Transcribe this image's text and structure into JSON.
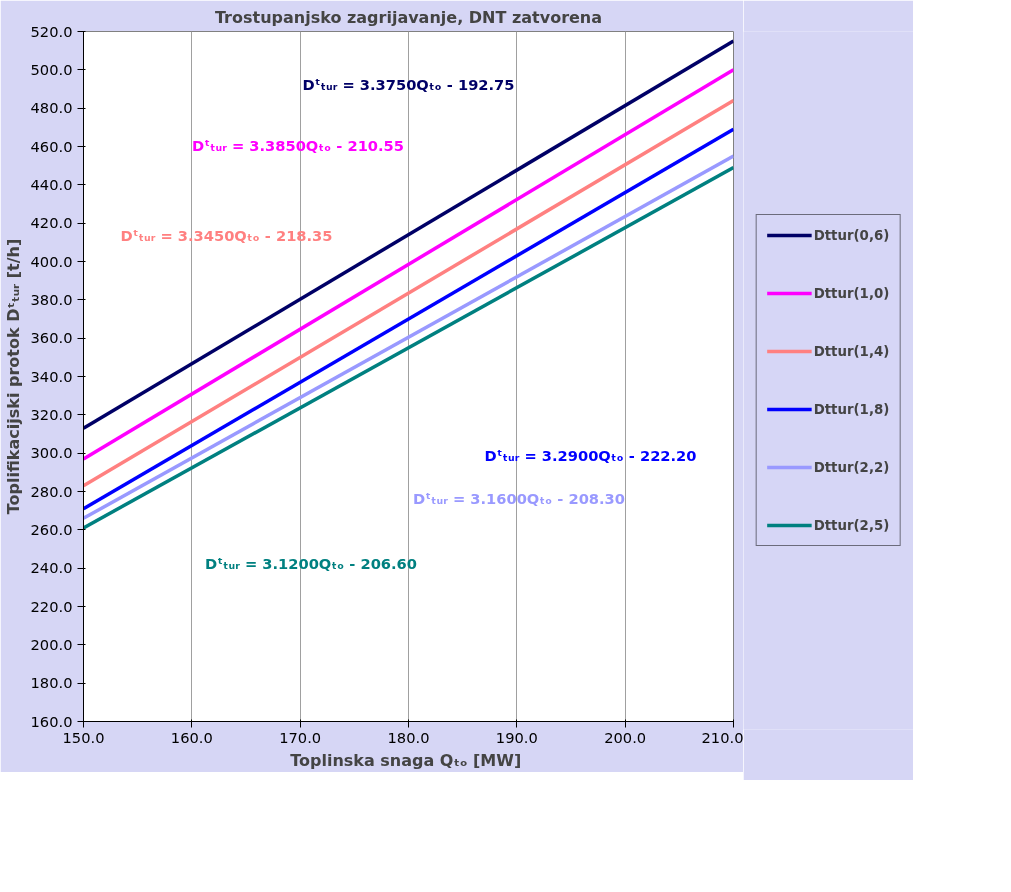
{
  "chart_data": {
    "type": "line",
    "title": "Trostupanjsko zagrijavanje, DNT zatvorena",
    "xlabel": "Toplinska snaga Qₜₒ  [MW]",
    "ylabel": "Toplifikacijski protok Dᵗₜᵤᵣ [t/h]",
    "x": [
      150,
      210
    ],
    "series": [
      {
        "name": "Dttur(0,6)",
        "color": "#000066",
        "values": [
          313,
          515
        ]
      },
      {
        "name": "Dttur(1,0)",
        "color": "#ff00ff",
        "values": [
          297,
          500
        ]
      },
      {
        "name": "Dttur(1,4)",
        "color": "#ff8080",
        "values": [
          283,
          484
        ]
      },
      {
        "name": "Dttur(1,8)",
        "color": "#0000ff",
        "values": [
          271,
          469
        ]
      },
      {
        "name": "Dttur(2,2)",
        "color": "#9999ff",
        "values": [
          266,
          455
        ]
      },
      {
        "name": "Dttur(2,5)",
        "color": "#008080",
        "values": [
          261,
          449
        ]
      }
    ],
    "annotations": [
      "Dᵗₜᵤᵣ = 3.3750Qₜₒ - 192.75",
      "Dᵗₜᵤᵣ = 3.3850Qₜₒ - 210.55",
      "Dᵗₜᵤᵣ = 3.3450Qₜₒ - 218.35",
      "Dᵗₜᵤᵣ = 3.2900Qₜₒ - 222.20",
      "Dᵗₜᵤᵣ = 3.1600Qₜₒ - 208.30",
      "Dᵗₜᵤᵣ = 3.1200Qₜₒ - 206.60"
    ],
    "xlim": [
      150,
      210
    ],
    "ylim": [
      160,
      520
    ],
    "xticks": [
      {
        "value": 150,
        "label": "150.0"
      },
      {
        "value": 160,
        "label": "160.0"
      },
      {
        "value": 170,
        "label": "170.0"
      },
      {
        "value": 180,
        "label": "180.0"
      },
      {
        "value": 190,
        "label": "190.0"
      },
      {
        "value": 200,
        "label": "200.0"
      },
      {
        "value": 210,
        "label": "210.0"
      }
    ],
    "yticks": [
      {
        "value": 160,
        "label": "160.0"
      },
      {
        "value": 180,
        "label": "180.0"
      },
      {
        "value": 200,
        "label": "200.0"
      },
      {
        "value": 220,
        "label": "220.0"
      },
      {
        "value": 240,
        "label": "240.0"
      },
      {
        "value": 260,
        "label": "260.0"
      },
      {
        "value": 280,
        "label": "280.0"
      },
      {
        "value": 300,
        "label": "300.0"
      },
      {
        "value": 320,
        "label": "320.0"
      },
      {
        "value": 340,
        "label": "340.0"
      },
      {
        "value": 360,
        "label": "360.0"
      },
      {
        "value": 380,
        "label": "380.0"
      },
      {
        "value": 400,
        "label": "400.0"
      },
      {
        "value": 420,
        "label": "420.0"
      },
      {
        "value": 440,
        "label": "440.0"
      },
      {
        "value": 460,
        "label": "460.0"
      },
      {
        "value": 480,
        "label": "480.0"
      },
      {
        "value": 500,
        "label": "500.0"
      },
      {
        "value": 520,
        "label": "520.0"
      }
    ],
    "grid": "x",
    "legend": "right",
    "marker": "none",
    "line_style": "solid"
  }
}
